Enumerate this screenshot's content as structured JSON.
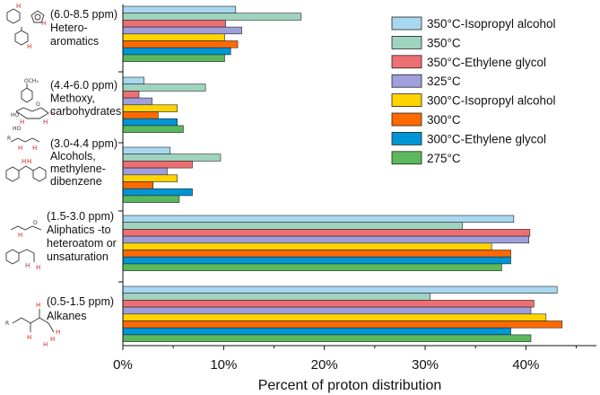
{
  "chart_data": {
    "type": "bar",
    "orientation": "horizontal",
    "xlabel": "Percent of proton distribution",
    "xlim": [
      0,
      47
    ],
    "xticks": [
      0,
      10,
      20,
      30,
      40
    ],
    "tick_format": "{v}%",
    "legend_position": "top-right",
    "categories": [
      {
        "lines": [
          "(6.0-8.5 ppm)",
          "Hetero-",
          "aromatics"
        ]
      },
      {
        "lines": [
          "(4.4-6.0 ppm)",
          "Methoxy,",
          "carbohydrates"
        ]
      },
      {
        "lines": [
          "(3.0-4.4 ppm)",
          "Alcohols,",
          "methylene-",
          "dibenzene"
        ]
      },
      {
        "lines": [
          "(1.5-3.0 ppm)",
          "Aliphatics -to",
          "heteroatom or",
          "unsaturation"
        ]
      },
      {
        "lines": [
          "(0.5-1.5 ppm)",
          "Alkanes"
        ]
      }
    ],
    "series": [
      {
        "name": "350°C-Isopropyl alcohol",
        "color": "#a8d8ef",
        "values": [
          11.2,
          2.1,
          4.7,
          38.8,
          43.1
        ]
      },
      {
        "name": "350°C",
        "color": "#9fd4bf",
        "values": [
          17.7,
          8.2,
          9.7,
          33.7,
          30.5
        ]
      },
      {
        "name": "350°C-Ethylene glycol",
        "color": "#ee6f73",
        "values": [
          10.2,
          1.6,
          6.9,
          40.4,
          40.8
        ]
      },
      {
        "name": "325°C",
        "color": "#9f9fdc",
        "values": [
          11.8,
          2.9,
          4.4,
          40.3,
          40.5
        ]
      },
      {
        "name": "300°C-Isopropyl alcohol",
        "color": "#ffd400",
        "values": [
          10.1,
          5.4,
          5.4,
          36.6,
          42.0
        ]
      },
      {
        "name": "300°C",
        "color": "#ff6a00",
        "values": [
          11.4,
          3.5,
          3.0,
          38.5,
          43.6
        ]
      },
      {
        "name": "300°C-Ethylene glycol",
        "color": "#0096d6",
        "values": [
          10.7,
          5.4,
          6.9,
          38.5,
          38.5
        ]
      },
      {
        "name": "275°C",
        "color": "#5cb85c",
        "values": [
          10.1,
          6.0,
          5.6,
          37.6,
          40.5
        ]
      }
    ]
  }
}
